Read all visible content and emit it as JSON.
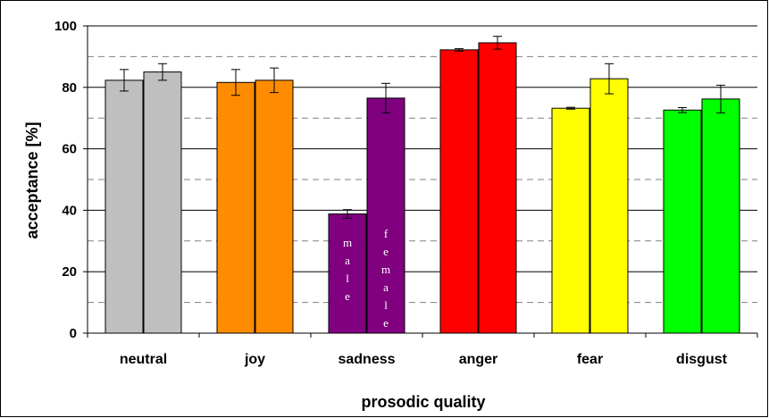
{
  "chart_data": {
    "type": "bar",
    "xlabel": "prosodic quality",
    "ylabel": "acceptance [%]",
    "ylim": [
      0,
      100
    ],
    "yticks": [
      0,
      20,
      40,
      60,
      80,
      100
    ],
    "grid": "horizontal (solid at labeled ticks, dashed between)",
    "categories": [
      "neutral",
      "joy",
      "sadness",
      "anger",
      "fear",
      "disgust"
    ],
    "series": [
      {
        "name": "male",
        "values": [
          82.3,
          81.6,
          38.8,
          92.2,
          73.2,
          72.6
        ],
        "errors": [
          3.5,
          4.2,
          1.4,
          0.4,
          0.3,
          0.8
        ]
      },
      {
        "name": "female",
        "values": [
          85.0,
          82.3,
          76.5,
          94.5,
          82.8,
          76.2
        ],
        "errors": [
          2.7,
          4.0,
          4.8,
          2.1,
          4.9,
          4.5
        ]
      }
    ],
    "colors": [
      "#bfbfbf",
      "#ff8c00",
      "#800080",
      "#ff0000",
      "#ffff00",
      "#00ff00"
    ],
    "series_annotations": [
      {
        "category": "sadness",
        "series": "male",
        "text": "male"
      },
      {
        "category": "sadness",
        "series": "female",
        "text": "female"
      }
    ]
  }
}
